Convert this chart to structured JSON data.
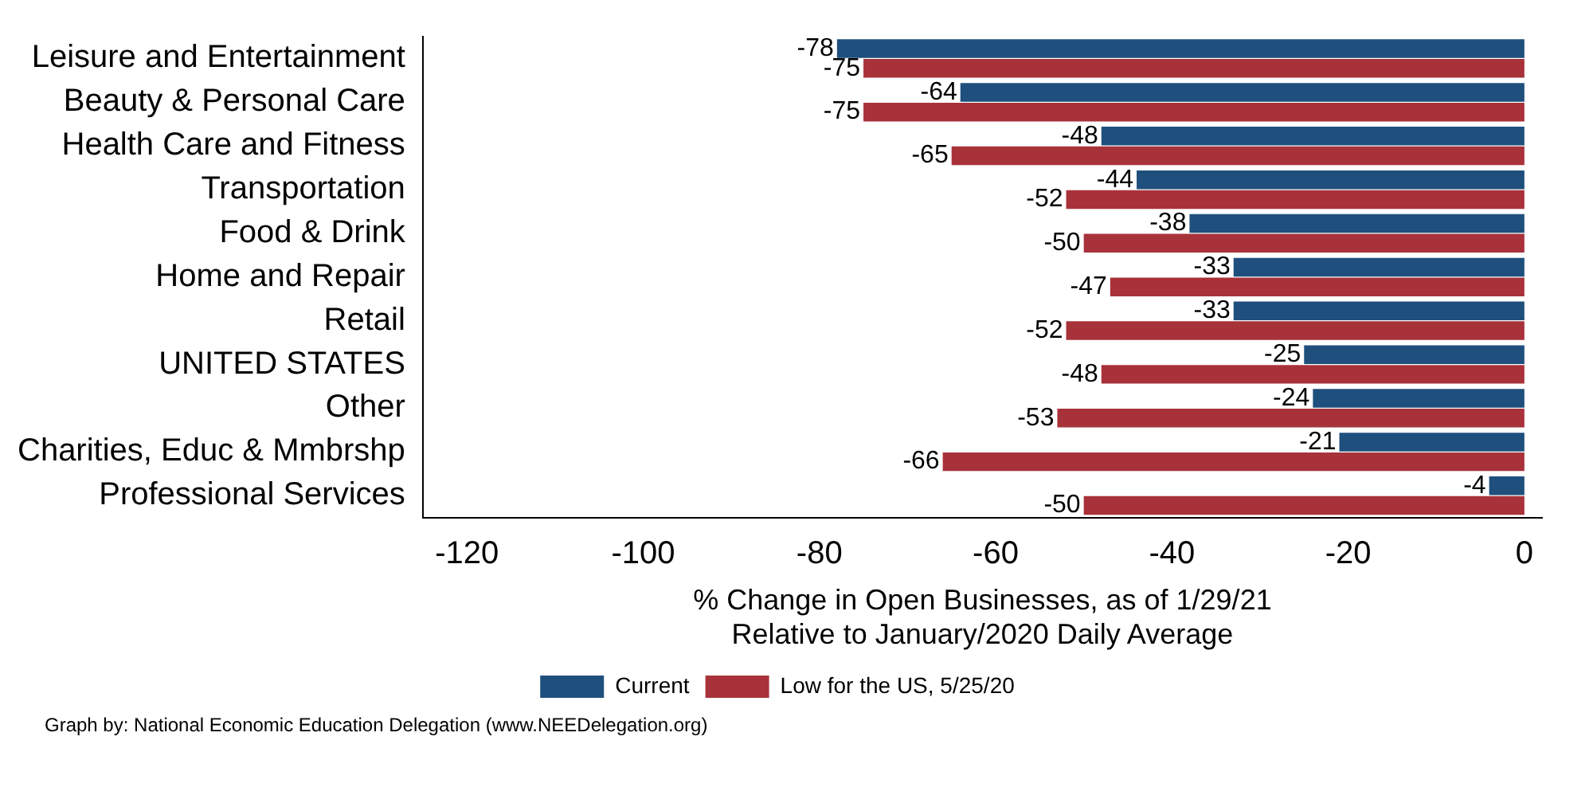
{
  "chart_data": {
    "type": "bar",
    "orientation": "horizontal",
    "categories": [
      "Leisure and Entertainment",
      "Beauty & Personal Care",
      "Health Care and Fitness",
      "Transportation",
      "Food & Drink",
      "Home and Repair",
      "Retail",
      "UNITED STATES",
      "Other",
      "Charities, Educ & Mmbrshp",
      "Professional Services"
    ],
    "series": [
      {
        "name": "Current",
        "color": "#1f4f7d",
        "values": [
          -78,
          -64,
          -48,
          -44,
          -38,
          -33,
          -33,
          -25,
          -24,
          -21,
          -4
        ]
      },
      {
        "name": "Low for the US, 5/25/20",
        "color": "#a8323a",
        "values": [
          -75,
          -75,
          -65,
          -52,
          -50,
          -47,
          -52,
          -48,
          -53,
          -66,
          -50
        ]
      }
    ],
    "xlim": [
      -125,
      2
    ],
    "xticks": [
      -120,
      -100,
      -80,
      -60,
      -40,
      -20,
      0
    ],
    "xlabel": "% Change in Open Businesses, as of 1/29/21\nRelative to January/2020 Daily Average",
    "data_labels": true,
    "grid": false,
    "legend": "bottom",
    "annotations": [
      "Graph by: National Economic Education Delegation (www.NEEDelegation.org)"
    ]
  }
}
